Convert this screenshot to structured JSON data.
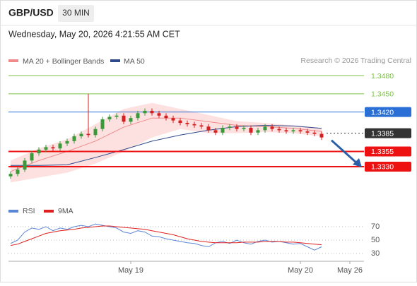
{
  "header": {
    "symbol": "GBP/USD",
    "timeframe": "30 MIN",
    "datetime": "Wednesday, May 20, 2026 4:21:55 AM CET"
  },
  "chart_data": [
    {
      "type": "candlestick",
      "source": "Research © 2026 Trading Central",
      "ylim": [
        1.3302,
        1.3494
      ],
      "up_color": "#3a9a3a",
      "down_color": "#d42020",
      "open": [
        1.3314,
        1.3318,
        1.3325,
        1.334,
        1.3352,
        1.3358,
        1.3362,
        1.336,
        1.3368,
        1.3372,
        1.338,
        1.3384,
        1.3382,
        1.3392,
        1.3408,
        1.3412,
        1.3414,
        1.3404,
        1.341,
        1.3418,
        1.3422,
        1.3418,
        1.3414,
        1.341,
        1.3406,
        1.3402,
        1.34,
        1.3398,
        1.3396,
        1.339,
        1.3386,
        1.3394,
        1.3396,
        1.3392,
        1.3394,
        1.3386,
        1.339,
        1.3396,
        1.3392,
        1.339,
        1.3388,
        1.339,
        1.3388,
        1.3386,
        1.3384
      ],
      "high": [
        1.3322,
        1.3329,
        1.3344,
        1.3356,
        1.3362,
        1.3366,
        1.3366,
        1.3372,
        1.3376,
        1.3384,
        1.3388,
        1.345,
        1.3396,
        1.3412,
        1.3416,
        1.3418,
        1.3418,
        1.3414,
        1.3422,
        1.3426,
        1.3426,
        1.3422,
        1.3418,
        1.3414,
        1.341,
        1.3406,
        1.3404,
        1.3402,
        1.34,
        1.3394,
        1.3398,
        1.34,
        1.34,
        1.3398,
        1.3398,
        1.3394,
        1.34,
        1.34,
        1.3396,
        1.3394,
        1.3394,
        1.3394,
        1.3392,
        1.339,
        1.3388
      ],
      "low": [
        1.331,
        1.3314,
        1.3321,
        1.3336,
        1.3348,
        1.3354,
        1.3356,
        1.3356,
        1.3364,
        1.3368,
        1.3376,
        1.3378,
        1.3378,
        1.3388,
        1.3404,
        1.3408,
        1.34,
        1.34,
        1.3406,
        1.3414,
        1.3414,
        1.341,
        1.3406,
        1.3402,
        1.3398,
        1.3396,
        1.3394,
        1.3392,
        1.3386,
        1.3382,
        1.3382,
        1.339,
        1.3388,
        1.3388,
        1.3382,
        1.3382,
        1.3386,
        1.3388,
        1.3386,
        1.3384,
        1.3384,
        1.3384,
        1.3382,
        1.338,
        1.3374
      ],
      "close": [
        1.3318,
        1.3325,
        1.334,
        1.3352,
        1.3358,
        1.3362,
        1.336,
        1.3368,
        1.3372,
        1.338,
        1.3384,
        1.3382,
        1.3392,
        1.3408,
        1.3412,
        1.3414,
        1.3404,
        1.341,
        1.3418,
        1.3422,
        1.3418,
        1.3414,
        1.341,
        1.3406,
        1.3402,
        1.34,
        1.3398,
        1.3396,
        1.339,
        1.3386,
        1.3394,
        1.3396,
        1.3392,
        1.3394,
        1.3386,
        1.339,
        1.3396,
        1.3392,
        1.339,
        1.3388,
        1.339,
        1.3388,
        1.3386,
        1.3384,
        1.3378
      ],
      "overlay_x": [
        0,
        4,
        8,
        12,
        16,
        20,
        24,
        28,
        32,
        36,
        40,
        44
      ],
      "bands": {
        "name": "MA 20 + Bollinger Bands",
        "color": "#f08a8a",
        "fill": "#fde0e0",
        "middle": [
          1.3322,
          1.334,
          1.3355,
          1.3372,
          1.3395,
          1.341,
          1.341,
          1.3404,
          1.3398,
          1.3396,
          1.3393,
          1.3388
        ],
        "upper": [
          1.334,
          1.336,
          1.3375,
          1.34,
          1.3425,
          1.3435,
          1.3425,
          1.3415,
          1.3405,
          1.3402,
          1.3398,
          1.3394
        ],
        "lower": [
          1.3304,
          1.3312,
          1.332,
          1.3335,
          1.3355,
          1.3378,
          1.3392,
          1.3385,
          1.3385,
          1.3387,
          1.3385,
          1.338
        ]
      },
      "ma50": {
        "name": "MA 50",
        "color": "#2e4a8a",
        "values": [
          1.3332,
          1.3332,
          1.3333,
          1.3345,
          1.3358,
          1.3372,
          1.3382,
          1.339,
          1.3396,
          1.3398,
          1.3397,
          1.3393
        ]
      },
      "levels": [
        {
          "value": 1.348,
          "label": "1.3480",
          "color": "#7cc04a",
          "boxed": false
        },
        {
          "value": 1.345,
          "label": "1.3450",
          "color": "#7cc04a",
          "boxed": false
        },
        {
          "value": 1.342,
          "label": "1.3420",
          "color": "#2a6fd6",
          "boxed": true
        },
        {
          "value": 1.3385,
          "color": "#333333",
          "boxed": true,
          "dotted": true
        },
        {
          "value": 1.3355,
          "color": "#ee1111",
          "boxed": true
        },
        {
          "value": 1.333,
          "label": "1.3330",
          "color": "#ee1111",
          "boxed": true
        }
      ],
      "xticks": [
        {
          "value": 17,
          "label": "May 19"
        },
        {
          "value": 41,
          "label": "May 20"
        },
        {
          "value": 48,
          "label": "May 26"
        }
      ]
    },
    {
      "type": "line",
      "ylim": [
        24,
        80
      ],
      "yticks": [
        70,
        50,
        30
      ],
      "series": [
        {
          "name": "RSI",
          "color": "#5b86d6",
          "values": [
            45,
            50,
            62,
            68,
            66,
            70,
            64,
            68,
            66,
            70,
            72,
            70,
            74,
            72,
            70,
            68,
            62,
            60,
            64,
            62,
            56,
            55,
            52,
            50,
            48,
            46,
            45,
            42,
            40,
            46,
            48,
            45,
            50,
            46,
            44,
            48,
            50,
            47,
            48,
            46,
            44,
            45,
            40,
            35,
            40
          ]
        },
        {
          "name": "9MA",
          "color": "#e02020",
          "values": [
            42,
            44,
            48,
            52,
            56,
            60,
            62,
            64,
            65,
            66,
            68,
            69,
            70,
            71,
            71,
            70,
            69,
            68,
            67,
            66,
            64,
            62,
            60,
            58,
            55,
            52,
            50,
            48,
            47,
            46,
            46,
            46,
            46,
            47,
            47,
            47,
            48,
            48,
            48,
            47,
            47,
            46,
            45,
            44,
            43
          ]
        }
      ]
    }
  ]
}
